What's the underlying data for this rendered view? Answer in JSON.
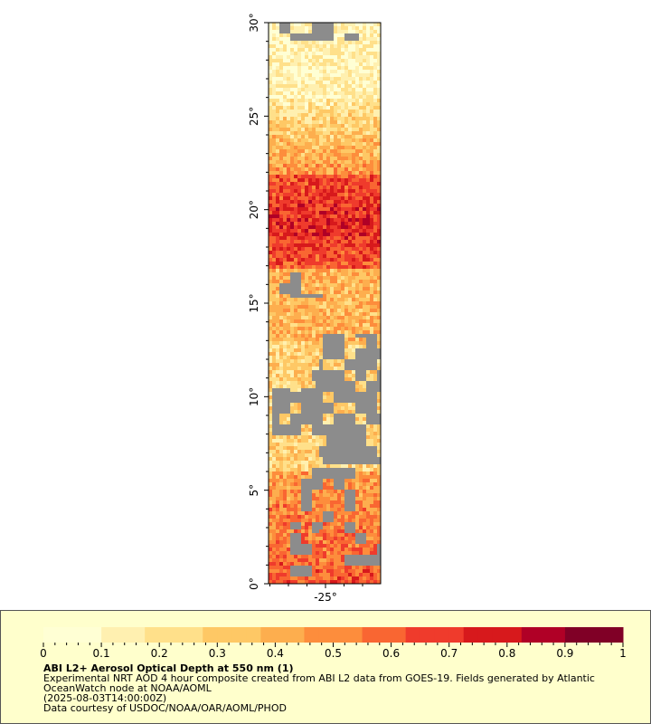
{
  "map": {
    "lat_labels": [
      "0°",
      "5°",
      "10°",
      "15°",
      "20°",
      "25°",
      "30°"
    ],
    "lat_values": [
      0,
      5,
      10,
      15,
      20,
      25,
      30
    ],
    "lon_labels": [
      "-25°"
    ],
    "lon_values": [
      -25
    ],
    "no_data_color": "#8c8c8c",
    "land_color": "#b4b4b4"
  },
  "legend": {
    "ticks": [
      "0",
      "0.1",
      "0.2",
      "0.3",
      "0.4",
      "0.5",
      "0.6",
      "0.7",
      "0.8",
      "0.9",
      "1"
    ],
    "range": [
      0,
      1
    ],
    "colors": [
      "#ffffd4",
      "#fff0b0",
      "#ffe08a",
      "#fec865",
      "#fdae4e",
      "#fd8d3c",
      "#f96632",
      "#ef3b2c",
      "#d7191c",
      "#b00026",
      "#800026"
    ],
    "title": "ABI L2+ Aerosol Optical Depth at 550 nm (1)",
    "desc_line1": "Experimental NRT AOD 4 hour composite created from ABI L2 data from GOES-19. Fields generated by Atlantic",
    "desc_line2": "OceanWatch node at NOAA/AOML",
    "timestamp": "(2025-08-03T14:00:00Z)",
    "credit": "Data courtesy of USDOC/NOAA/OAR/AOML/PHOD"
  }
}
